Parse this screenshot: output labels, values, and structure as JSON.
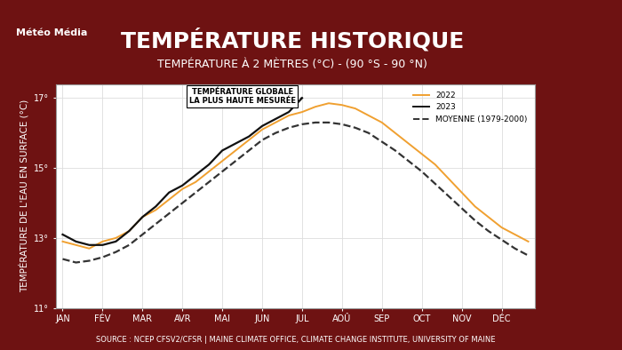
{
  "chart_data": {
    "type": "line",
    "logo": "Météo Média",
    "title": "TEMPÉRATURE HISTORIQUE",
    "subtitle": "TEMPÉRATURE À 2 MÈTRES (°C) - (90 °S - 90 °N)",
    "y_label": "TEMPÉRATURE DE L'EAU EN SURFACE (°C)",
    "source": "SOURCE : NCEP CFSV2/CFSR | MAINE CLIMATE OFFICE, CLIMATE CHANGE INSTITUTE, UNIVERSITY OF MAINE",
    "annotation": {
      "text": "TEMPÉRATURE GLOBALE\nLA PLUS HAUTE MESURÉE",
      "series": "2023"
    },
    "categories": [
      "JAN",
      null,
      null,
      "FÉV",
      null,
      null,
      "MAR",
      null,
      null,
      "AVR",
      null,
      null,
      "MAI",
      null,
      null,
      "JUN",
      null,
      null,
      "JUL",
      null,
      null,
      "AOÛ",
      null,
      null,
      "SEP",
      null,
      null,
      "OCT",
      null,
      null,
      "NOV",
      null,
      null,
      "DÉC",
      null,
      null
    ],
    "series": [
      {
        "name": "2022",
        "color": "#f0a030",
        "line_style": "solid",
        "values": [
          12.9,
          12.8,
          12.7,
          12.9,
          13.0,
          13.2,
          13.6,
          13.8,
          14.1,
          14.4,
          14.6,
          14.9,
          15.2,
          15.5,
          15.8,
          16.1,
          16.3,
          16.5,
          16.6,
          16.75,
          16.85,
          16.8,
          16.7,
          16.5,
          16.3,
          16.0,
          15.7,
          15.4,
          15.1,
          14.7,
          14.3,
          13.9,
          13.6,
          13.3,
          13.1,
          12.9
        ]
      },
      {
        "name": "2023",
        "color": "#111111",
        "line_style": "solid",
        "values": [
          13.1,
          12.9,
          12.8,
          12.8,
          12.9,
          13.2,
          13.6,
          13.9,
          14.3,
          14.5,
          14.8,
          15.1,
          15.5,
          15.7,
          15.9,
          16.2,
          16.4,
          16.6,
          17.0,
          null,
          null,
          null,
          null,
          null,
          null,
          null,
          null,
          null,
          null,
          null,
          null,
          null,
          null,
          null,
          null,
          null
        ]
      },
      {
        "name": "MOYENNE (1979-2000)",
        "color": "#333333",
        "line_style": "dashed",
        "values": [
          12.4,
          12.3,
          12.35,
          12.45,
          12.6,
          12.8,
          13.1,
          13.4,
          13.7,
          14.0,
          14.3,
          14.6,
          14.9,
          15.2,
          15.5,
          15.8,
          16.0,
          16.15,
          16.25,
          16.3,
          16.3,
          16.25,
          16.15,
          16.0,
          15.75,
          15.5,
          15.2,
          14.9,
          14.55,
          14.2,
          13.85,
          13.5,
          13.2,
          12.95,
          12.7,
          12.5
        ]
      }
    ],
    "ylim": [
      11,
      17.4
    ],
    "yticks": [
      {
        "value": 11,
        "label": "11°"
      },
      {
        "value": 13,
        "label": "13°"
      },
      {
        "value": 15,
        "label": "15°"
      },
      {
        "value": 17,
        "label": "17°"
      }
    ],
    "grid": true,
    "legend": "upper right"
  }
}
